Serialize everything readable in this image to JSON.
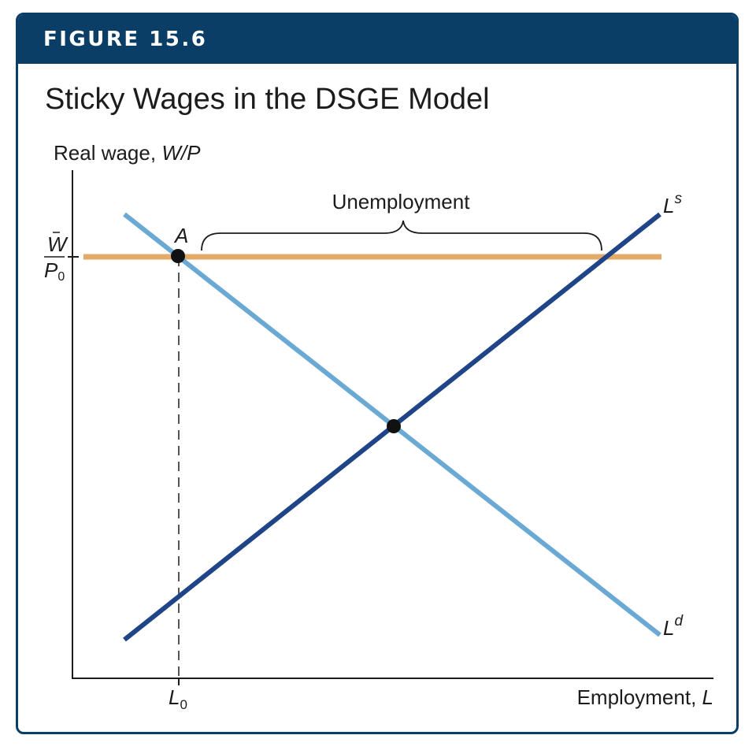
{
  "figure": {
    "label": "FIGURE 15.6",
    "title": "Sticky Wages in the DSGE Model"
  },
  "axes": {
    "y_label": "Real wage, ",
    "y_label_italic": "W/P",
    "x_label": "Employment, ",
    "x_label_italic": "L"
  },
  "wage_tick": {
    "numerator": "W",
    "denominator": "P",
    "denominator_sub": "0"
  },
  "employment_tick": {
    "main": "L",
    "sub": "0"
  },
  "curves": {
    "supply": {
      "main": "L",
      "sup": "s",
      "color": "#1f4488"
    },
    "demand": {
      "main": "L",
      "sup": "d",
      "color": "#6aa9d4"
    },
    "wage_line_color": "#e3aa6a"
  },
  "annotations": {
    "point_a": "A",
    "unemployment": "Unemployment"
  },
  "colors": {
    "banner": "#0b3e66",
    "axis": "#1c1c1c"
  }
}
